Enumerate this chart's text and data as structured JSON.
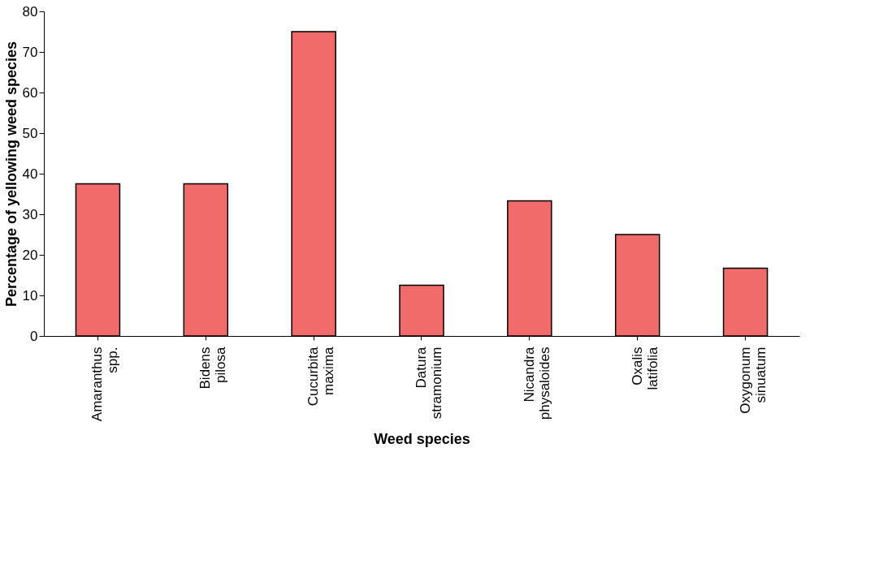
{
  "chart_data": {
    "type": "bar",
    "xlabel": "Weed species",
    "ylabel": "Percentage of yellowing weed species",
    "categories": [
      "Amaranthus spp.",
      "Bidens pilosa",
      "Cucurbita maxima",
      "Datura stramonium",
      "Nicandra physaloides",
      "Oxalis latifolia",
      "Oxygonum sinuatum"
    ],
    "values": [
      37.5,
      37.5,
      75,
      12.5,
      33.3,
      25,
      16.7
    ],
    "color": "#f26b6b",
    "ylim": [
      0,
      80
    ],
    "yticks": [
      0,
      10,
      20,
      30,
      40,
      50,
      60,
      70,
      80
    ],
    "grid": false
  }
}
